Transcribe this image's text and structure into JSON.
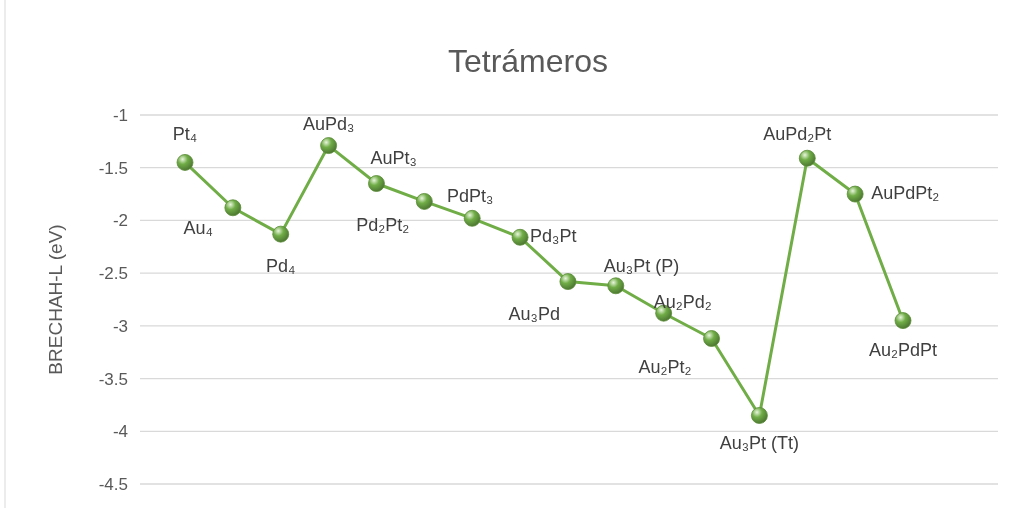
{
  "chart_data": {
    "type": "line",
    "title": "Tetrámeros",
    "ylabel": "BRECHAH-L  (eV)",
    "categories": [
      null,
      null,
      null,
      null,
      null,
      null,
      null,
      null,
      null,
      null,
      null,
      null,
      null,
      null,
      null,
      null
    ],
    "series": [
      {
        "color": "#70ad47",
        "values": [
          -1.45,
          -1.88,
          -2.13,
          -1.29,
          -1.65,
          -1.82,
          -1.98,
          -2.16,
          -2.58,
          -2.62,
          -2.88,
          -3.12,
          -3.85,
          -1.41,
          -1.75,
          -2.95
        ],
        "value_labels": [
          "Pt₄",
          "Au₄",
          "Pd₄",
          "AuPd₃",
          "AuPt₃",
          "Pd₂Pt₂",
          "PdPt₃",
          "Pd₃Pt",
          "Au₃Pd",
          "Au₃Pt (P)",
          "Au₂Pd₂",
          "Au₂Pt₂",
          "Au₃Pt (Tt)",
          "AuPd₂Pt",
          "AuPdPt₂",
          "Au₂PdPt"
        ]
      }
    ],
    "ylim": [
      -4.5,
      -1
    ],
    "yticks": [
      -1,
      -1.5,
      -2,
      -2.5,
      -3,
      -3.5,
      -4,
      -4.5
    ],
    "grid": "y",
    "marker": "circle",
    "tick_labels": "y"
  }
}
